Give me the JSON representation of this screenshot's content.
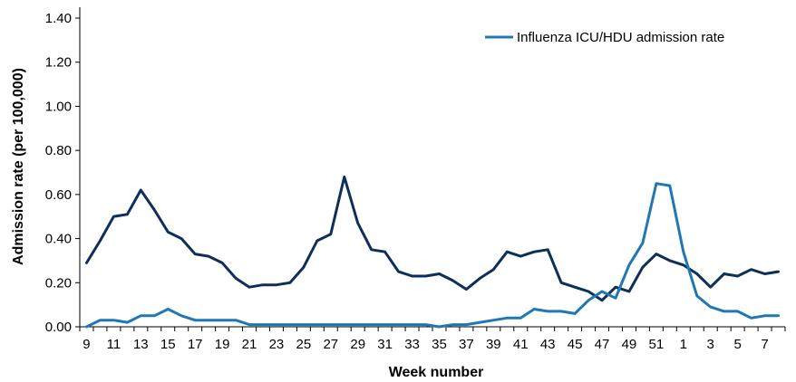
{
  "chart_data": {
    "type": "line",
    "xlabel": "Week number",
    "ylabel": "Admission rate (per 100,000)",
    "ylim": [
      0,
      1.4
    ],
    "yticks": [
      "0.00",
      "0.20",
      "0.40",
      "0.60",
      "0.80",
      "1.00",
      "1.20",
      "1.40"
    ],
    "x": [
      "9",
      "10",
      "11",
      "12",
      "13",
      "14",
      "15",
      "16",
      "17",
      "18",
      "19",
      "20",
      "21",
      "22",
      "23",
      "24",
      "25",
      "26",
      "27",
      "28",
      "29",
      "30",
      "31",
      "32",
      "33",
      "34",
      "35",
      "36",
      "37",
      "38",
      "39",
      "40",
      "41",
      "42",
      "43",
      "44",
      "45",
      "46",
      "47",
      "48",
      "49",
      "50",
      "51",
      "52",
      "1",
      "2",
      "3",
      "4",
      "5",
      "6",
      "7",
      "8"
    ],
    "xtick_labels": [
      "9",
      "11",
      "13",
      "15",
      "17",
      "19",
      "21",
      "23",
      "25",
      "27",
      "29",
      "31",
      "33",
      "35",
      "37",
      "39",
      "41",
      "43",
      "45",
      "47",
      "49",
      "51",
      "1",
      "3",
      "5",
      "7"
    ],
    "legend_position": "top-right",
    "grid": false,
    "series": [
      {
        "name": "",
        "color": "#0e2f5a",
        "values": [
          0.29,
          0.39,
          0.5,
          0.51,
          0.62,
          0.53,
          0.43,
          0.4,
          0.33,
          0.32,
          0.29,
          0.22,
          0.18,
          0.19,
          0.19,
          0.2,
          0.27,
          0.39,
          0.42,
          0.68,
          0.47,
          0.35,
          0.34,
          0.25,
          0.23,
          0.23,
          0.24,
          0.21,
          0.17,
          0.22,
          0.26,
          0.34,
          0.32,
          0.34,
          0.35,
          0.2,
          0.18,
          0.16,
          0.12,
          0.18,
          0.16,
          0.27,
          0.33,
          0.3,
          0.28,
          0.24,
          0.18,
          0.24,
          0.23,
          0.26,
          0.24,
          0.25
        ]
      },
      {
        "name": "Influenza ICU/HDU admission rate",
        "color": "#1f78b4",
        "values": [
          0.0,
          0.03,
          0.03,
          0.02,
          0.05,
          0.05,
          0.08,
          0.05,
          0.03,
          0.03,
          0.03,
          0.03,
          0.01,
          0.01,
          0.01,
          0.01,
          0.01,
          0.01,
          0.01,
          0.01,
          0.01,
          0.01,
          0.01,
          0.01,
          0.01,
          0.01,
          0.0,
          0.01,
          0.01,
          0.02,
          0.03,
          0.04,
          0.04,
          0.08,
          0.07,
          0.07,
          0.06,
          0.12,
          0.16,
          0.13,
          0.28,
          0.38,
          0.65,
          0.64,
          0.34,
          0.14,
          0.09,
          0.07,
          0.07,
          0.04,
          0.05,
          0.05
        ]
      }
    ]
  }
}
